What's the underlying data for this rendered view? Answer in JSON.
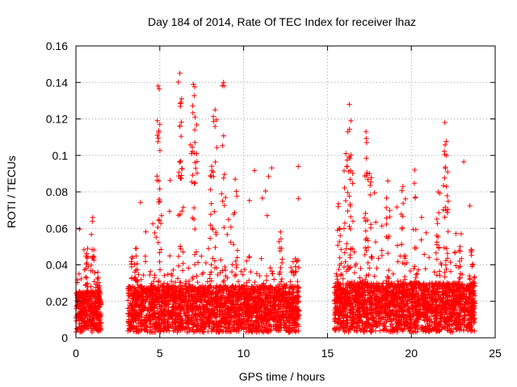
{
  "chart_data": {
    "type": "scatter",
    "title": "Day 184 of 2014, Rate Of TEC Index for receiver lhaz",
    "xlabel": "GPS time / hours",
    "ylabel": "ROTI / TECUs",
    "xlim": [
      0,
      25
    ],
    "ylim": [
      0,
      0.16
    ],
    "xticks": [
      0,
      5,
      10,
      15,
      20,
      25
    ],
    "xtick_labels": [
      "0",
      "5",
      "10",
      "15",
      "20",
      "25"
    ],
    "yticks": [
      0,
      0.02,
      0.04,
      0.06,
      0.08,
      0.1,
      0.12,
      0.14,
      0.16
    ],
    "ytick_labels": [
      "0",
      "0.02",
      "0.04",
      "0.06",
      "0.08",
      "0.1",
      "0.12",
      "0.14",
      "0.16"
    ],
    "grid": true,
    "marker": "+",
    "color": "#ff0000",
    "data_windows": [
      {
        "start": 0.0,
        "end": 1.5,
        "base": 0.014,
        "peak": 0.066
      },
      {
        "start": 3.1,
        "end": 13.3,
        "base": 0.016,
        "peak": 0.145
      },
      {
        "start": 15.4,
        "end": 23.8,
        "base": 0.017,
        "peak": 0.128
      }
    ],
    "peaks": [
      {
        "x": 0.7,
        "y": 0.049
      },
      {
        "x": 1.0,
        "y": 0.066
      },
      {
        "x": 1.3,
        "y": 0.036
      },
      {
        "x": 3.6,
        "y": 0.049
      },
      {
        "x": 4.9,
        "y": 0.138
      },
      {
        "x": 5.0,
        "y": 0.117
      },
      {
        "x": 6.2,
        "y": 0.145
      },
      {
        "x": 6.3,
        "y": 0.131
      },
      {
        "x": 7.0,
        "y": 0.139
      },
      {
        "x": 7.1,
        "y": 0.121
      },
      {
        "x": 8.1,
        "y": 0.094
      },
      {
        "x": 8.3,
        "y": 0.125
      },
      {
        "x": 8.8,
        "y": 0.14
      },
      {
        "x": 9.5,
        "y": 0.087
      },
      {
        "x": 12.2,
        "y": 0.058
      },
      {
        "x": 15.7,
        "y": 0.06
      },
      {
        "x": 16.1,
        "y": 0.101
      },
      {
        "x": 16.3,
        "y": 0.128
      },
      {
        "x": 16.4,
        "y": 0.119
      },
      {
        "x": 17.3,
        "y": 0.113
      },
      {
        "x": 17.5,
        "y": 0.09
      },
      {
        "x": 18.6,
        "y": 0.086
      },
      {
        "x": 19.5,
        "y": 0.083
      },
      {
        "x": 20.2,
        "y": 0.092
      },
      {
        "x": 21.6,
        "y": 0.08
      },
      {
        "x": 22.0,
        "y": 0.118
      },
      {
        "x": 22.1,
        "y": 0.1
      },
      {
        "x": 22.9,
        "y": 0.05
      },
      {
        "x": 23.6,
        "y": 0.048
      }
    ]
  }
}
